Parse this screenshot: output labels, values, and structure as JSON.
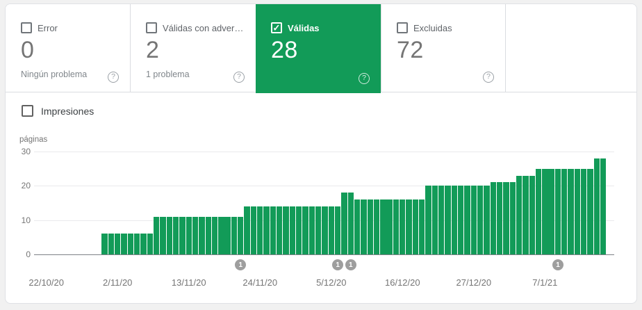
{
  "colors": {
    "green": "#129b58",
    "card_border": "#dadce0",
    "page_background": "#f1f1f1",
    "gridline": "#e9eaec",
    "axis_line": "#7d8085",
    "marker_gray": "#9e9e9e",
    "label_gray": "#5f6368",
    "value_gray": "#757575"
  },
  "icons": {
    "check": "✓",
    "help": "?"
  },
  "cards": [
    {
      "label": "Error",
      "value": "0",
      "sublabel": "Ningún problema",
      "checked": false,
      "selected": false
    },
    {
      "label": "Válidas con adver…",
      "value": "2",
      "sublabel": "1 problema",
      "checked": false,
      "selected": false
    },
    {
      "label": "Válidas",
      "value": "28",
      "sublabel": "",
      "checked": true,
      "selected": true
    },
    {
      "label": "Excluidas",
      "value": "72",
      "sublabel": "",
      "checked": false,
      "selected": false
    }
  ],
  "impressions": {
    "label": "Impresiones",
    "checked": false
  },
  "chart_data": {
    "type": "bar",
    "ylabel": "páginas",
    "ylim": [
      0,
      30
    ],
    "yticks": [
      0,
      10,
      20,
      30
    ],
    "grid": true,
    "bar_color": "#129b58",
    "x_tick_labels": [
      "22/10/20",
      "2/11/20",
      "13/11/20",
      "24/11/20",
      "5/12/20",
      "16/12/20",
      "27/12/20",
      "7/1/21"
    ],
    "x_tick_day_offsets": [
      0,
      11,
      22,
      33,
      44,
      55,
      66,
      77
    ],
    "series": [
      {
        "name": "Válidas",
        "values": [
          0,
          0,
          0,
          0,
          0,
          0,
          0,
          0,
          0,
          6,
          6,
          6,
          6,
          6,
          6,
          6,
          6,
          11,
          11,
          11,
          11,
          11,
          11,
          11,
          11,
          11,
          11,
          11,
          11,
          11,
          11,
          14,
          14,
          14,
          14,
          14,
          14,
          14,
          14,
          14,
          14,
          14,
          14,
          14,
          14,
          14,
          18,
          18,
          16,
          16,
          16,
          16,
          16,
          16,
          16,
          16,
          16,
          16,
          16,
          20,
          20,
          20,
          20,
          20,
          20,
          20,
          20,
          20,
          20,
          21,
          21,
          21,
          21,
          23,
          23,
          23,
          25,
          25,
          25,
          25,
          25,
          25,
          25,
          25,
          25,
          28,
          28
        ]
      }
    ],
    "markers": [
      {
        "day_index": 30,
        "label": "1"
      },
      {
        "day_index": 45,
        "label": "1"
      },
      {
        "day_index": 47,
        "label": "1"
      },
      {
        "day_index": 79,
        "label": "1"
      }
    ]
  }
}
